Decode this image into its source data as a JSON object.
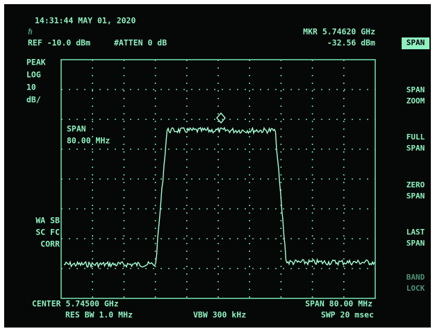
{
  "header": {
    "timestamp": "14:31:44 MAY 01, 2020",
    "ref": "REF -10.0 dBm",
    "atten": "#ATTEN 0 dB",
    "marker_freq": "MKR 5.74620 GHz",
    "marker_level": "-32.56 dBm"
  },
  "scale": [
    "PEAK",
    "LOG",
    "10",
    "dB/"
  ],
  "span_annotation": [
    "SPAN",
    "80.00 MHz"
  ],
  "corrections": [
    "WA SB",
    "SC FC",
    "CORR"
  ],
  "footer": {
    "center": "CENTER 5.74500 GHz",
    "span": "SPAN 80.00 MHz",
    "res_bw": "RES BW 1.0 MHz",
    "vbw": "VBW 300 kHz",
    "sweep": "SWP 20 msec"
  },
  "softkeys": [
    {
      "lines": [
        "SPAN"
      ]
    },
    {
      "lines": [
        "SPAN",
        "ZOOM"
      ]
    },
    {
      "lines": [
        "FULL",
        "SPAN"
      ]
    },
    {
      "lines": [
        "ZERO",
        "SPAN"
      ]
    },
    {
      "lines": [
        "LAST",
        "SPAN"
      ]
    },
    {
      "lines": [
        "BAND",
        "LOCK"
      ]
    }
  ]
}
